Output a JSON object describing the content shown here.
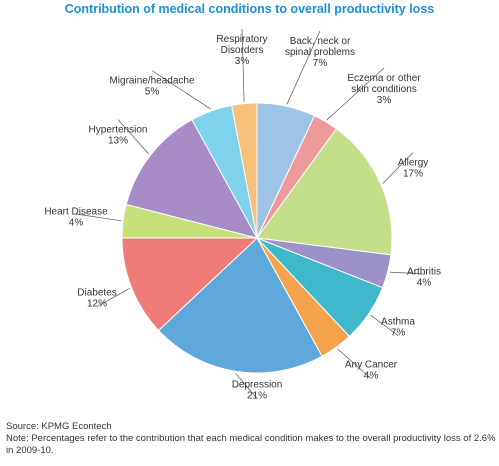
{
  "chart_data": {
    "type": "pie",
    "title": "Contribution of medical conditions to overall productivity loss",
    "slices": [
      {
        "label": "Back, neck or spinal problems",
        "value": 7,
        "display": "7%",
        "color": "#9dc3e6",
        "lines": [
          "Back, neck or",
          "spinal problems",
          "7%"
        ]
      },
      {
        "label": "Eczema or other skin conditions",
        "value": 3,
        "display": "3%",
        "color": "#ef9a9a",
        "lines": [
          "Eczema or other",
          "skin conditions",
          "3%"
        ]
      },
      {
        "label": "Allergy",
        "value": 17,
        "display": "17%",
        "color": "#c5de8a",
        "lines": [
          "Allergy",
          "17%"
        ]
      },
      {
        "label": "Arthritis",
        "value": 4,
        "display": "4%",
        "color": "#9c92c9",
        "lines": [
          "Arthritis",
          "4%"
        ]
      },
      {
        "label": "Asthma",
        "value": 7,
        "display": "7%",
        "color": "#3fb8cc",
        "lines": [
          "Asthma",
          "7%"
        ]
      },
      {
        "label": "Any Cancer",
        "value": 4,
        "display": "4%",
        "color": "#f5a24d",
        "lines": [
          "Any Cancer",
          "4%"
        ]
      },
      {
        "label": "Depression",
        "value": 21,
        "display": "21%",
        "color": "#5fa8dc",
        "lines": [
          "Depression",
          "21%"
        ]
      },
      {
        "label": "Diabetes",
        "value": 12,
        "display": "12%",
        "color": "#f07c7a",
        "lines": [
          "Diabetes",
          "12%"
        ]
      },
      {
        "label": "Heart Disease",
        "value": 4,
        "display": "4%",
        "color": "#c8e07a",
        "lines": [
          "Heart Disease",
          "4%"
        ]
      },
      {
        "label": "Hypertension",
        "value": 13,
        "display": "13%",
        "color": "#a78cc8",
        "lines": [
          "Hypertension",
          "13%"
        ]
      },
      {
        "label": "Migraine/headache",
        "value": 5,
        "display": "5%",
        "color": "#7ed2ec",
        "lines": [
          "Migraine/headache",
          "5%"
        ]
      },
      {
        "label": "Respiratory Disorders",
        "value": 3,
        "display": "3%",
        "color": "#f8c07a",
        "lines": [
          "Respiratory",
          "Disorders",
          "3%"
        ]
      }
    ]
  },
  "footer": {
    "source": "Source: KPMG Econtech",
    "note": "Note: Percentages refer to the contribution that each medical condition makes to the overall productivity loss of 2.6% in 2009-10."
  }
}
